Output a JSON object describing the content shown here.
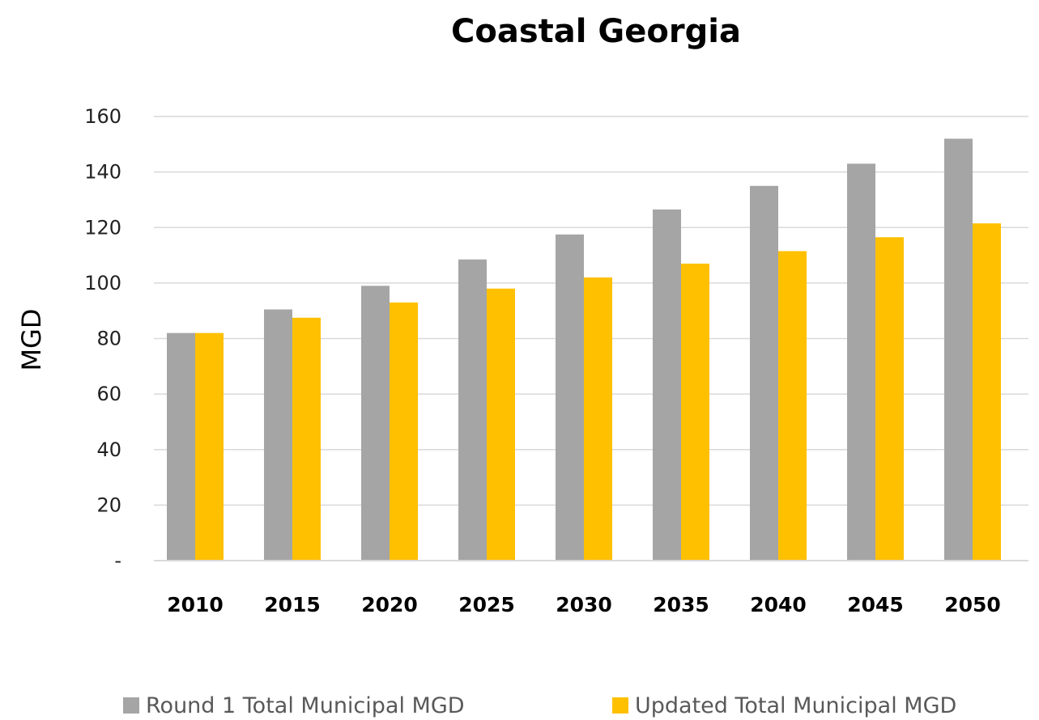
{
  "chart_data": {
    "type": "bar",
    "title": "Coastal Georgia",
    "xlabel": "",
    "ylabel": "MGD",
    "categories": [
      "2010",
      "2015",
      "2020",
      "2025",
      "2030",
      "2035",
      "2040",
      "2045",
      "2050"
    ],
    "series": [
      {
        "name": "Round 1 Total Municipal MGD",
        "color": "#a5a5a5",
        "values": [
          82,
          90.5,
          99,
          108.5,
          117.5,
          126.5,
          135,
          143,
          152
        ]
      },
      {
        "name": "Updated Total Municipal MGD",
        "color": "#ffc000",
        "values": [
          82,
          87.5,
          93,
          98,
          102,
          107,
          111.5,
          116.5,
          121.5
        ]
      }
    ],
    "ylim": [
      0,
      160
    ],
    "yticks": [
      0,
      20,
      40,
      60,
      80,
      100,
      120,
      140,
      160
    ],
    "ytick_labels": [
      "-",
      "20",
      "40",
      "60",
      "80",
      "100",
      "120",
      "140",
      "160"
    ],
    "grid": true,
    "legend_position": "bottom"
  }
}
